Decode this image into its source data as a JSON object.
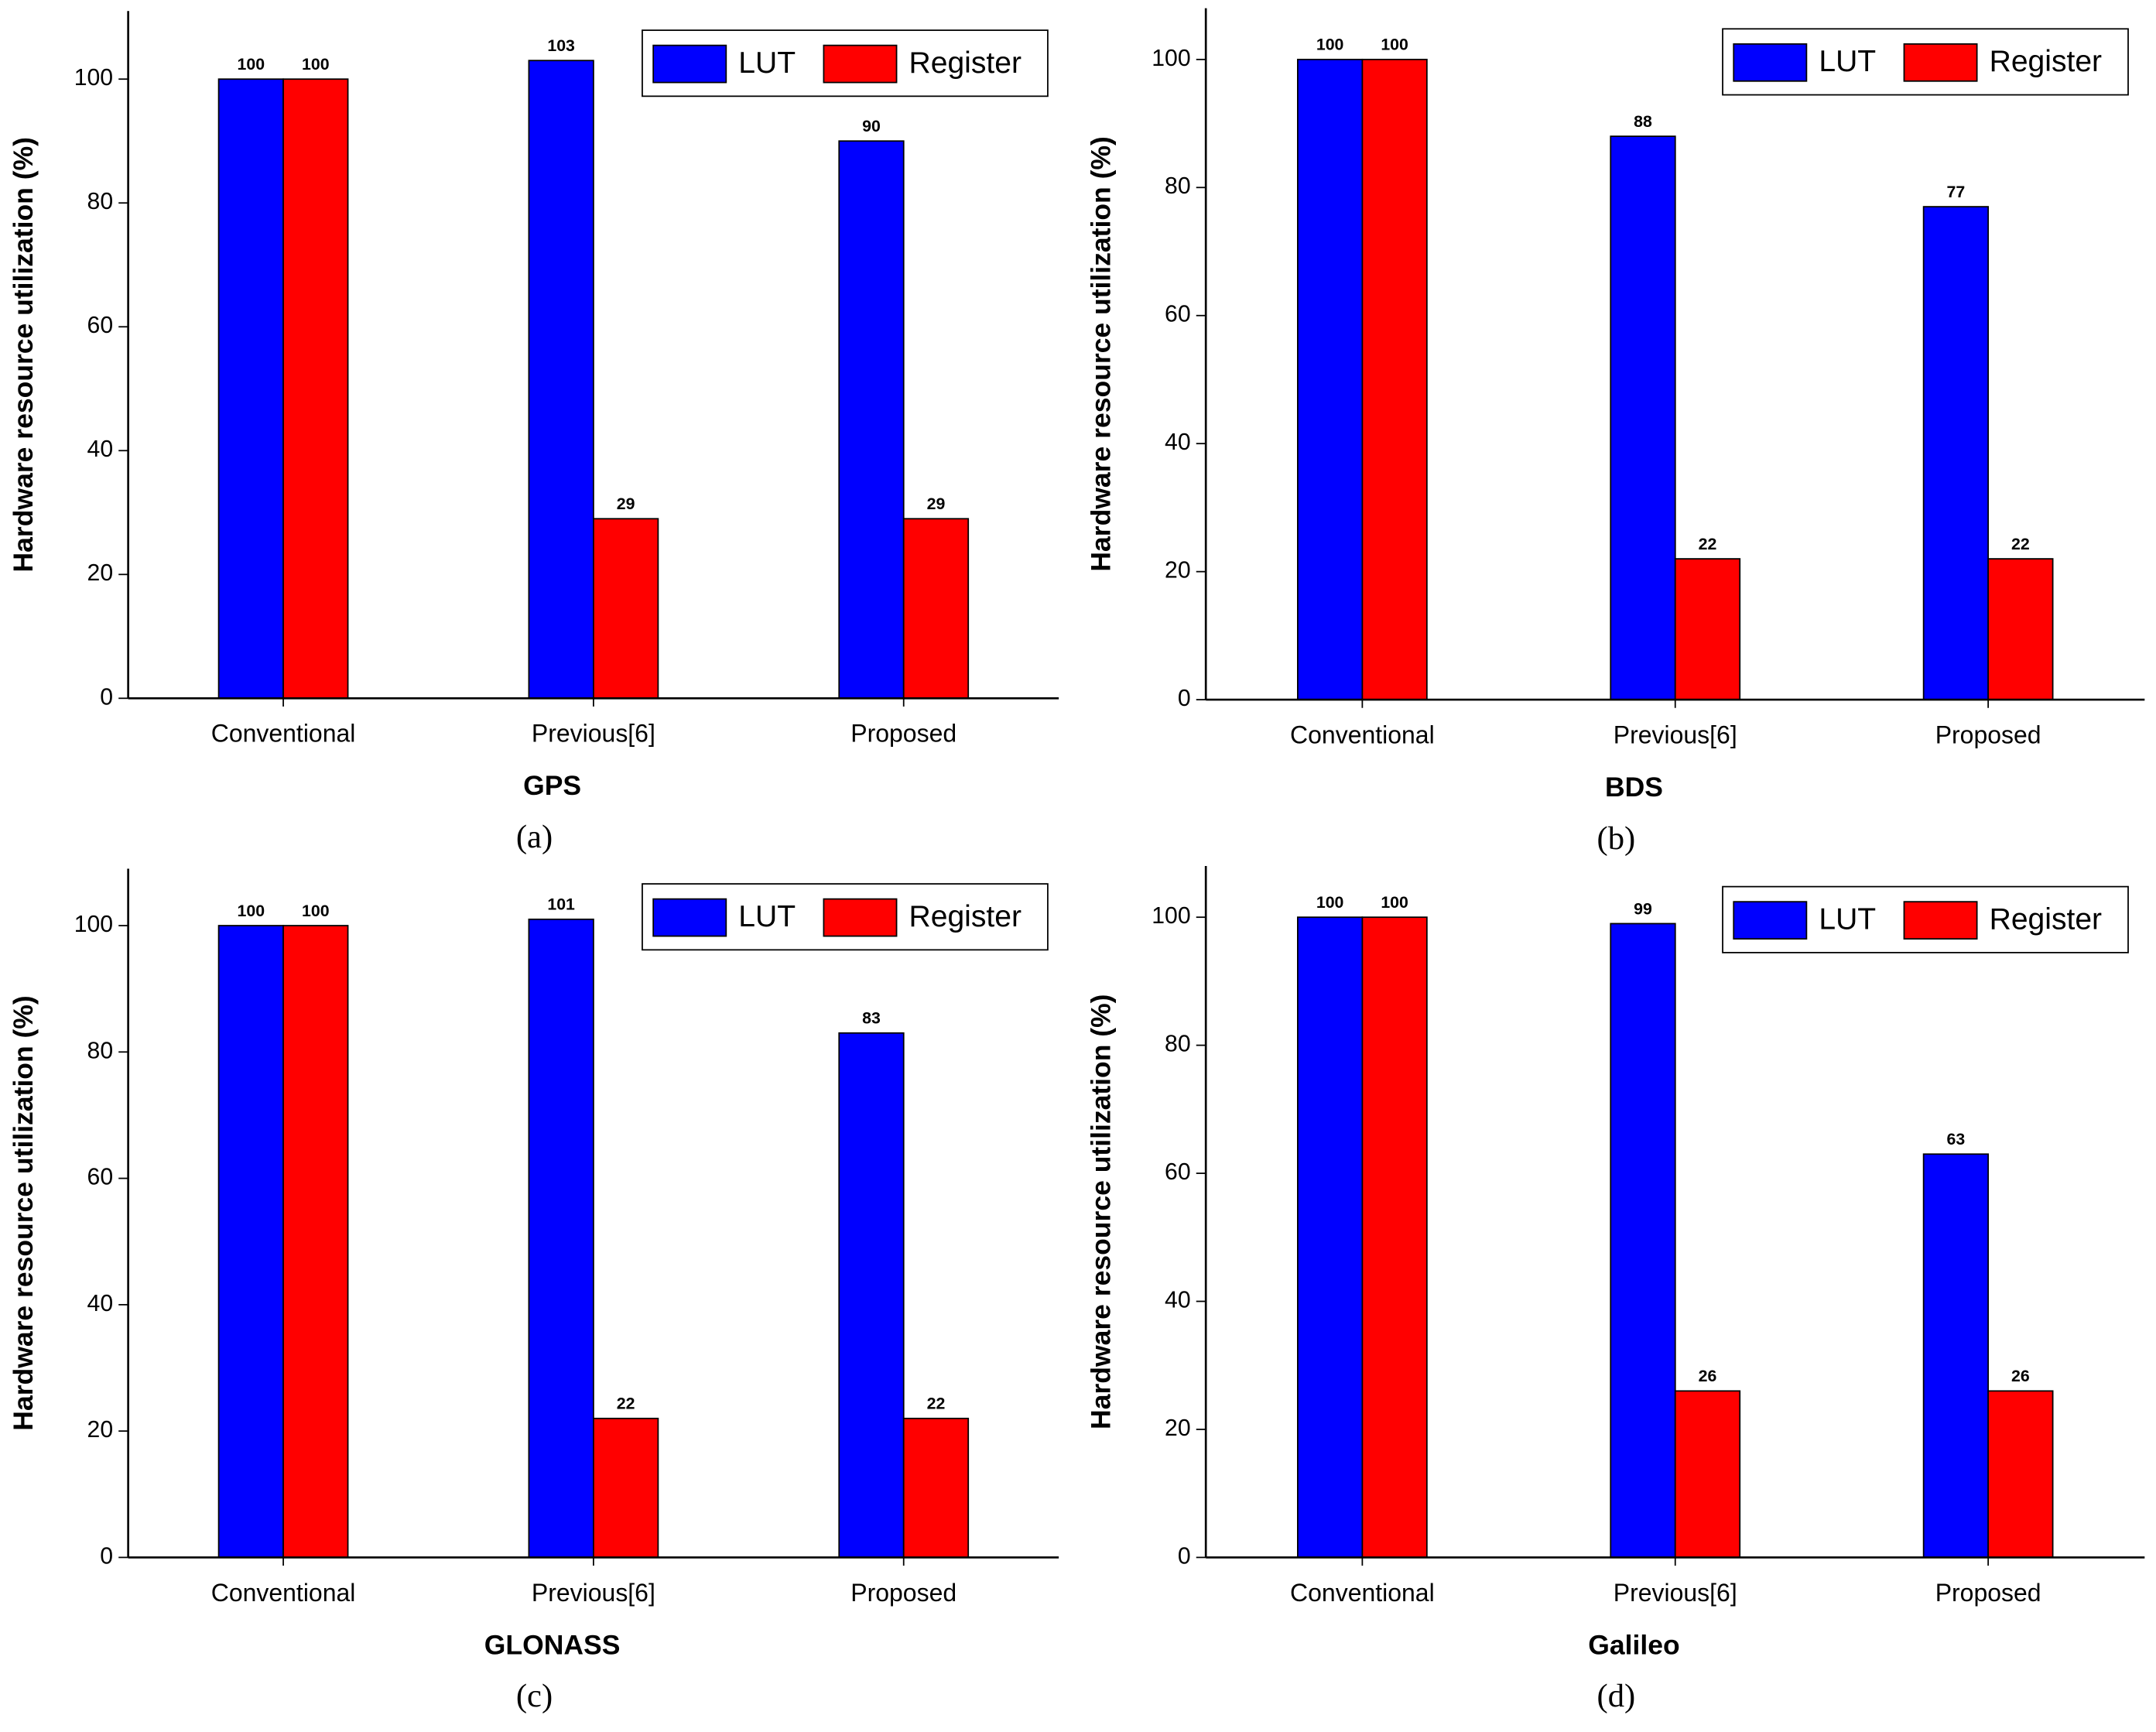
{
  "chart_data": [
    {
      "type": "bar",
      "x_label": "GPS",
      "y_label": "Hardware resource utilization (%)",
      "panel_label": "(a)",
      "categories": [
        "Conventional",
        "Previous[6]",
        "Proposed"
      ],
      "series": [
        {
          "name": "LUT",
          "color": "#0000ff",
          "values": [
            100,
            103,
            90
          ]
        },
        {
          "name": "Register",
          "color": "#ff0000",
          "values": [
            100,
            29,
            29
          ]
        }
      ],
      "ylim": [
        0,
        111
      ],
      "yticks": [
        0,
        20,
        40,
        60,
        80,
        100
      ],
      "legend": "upper right"
    },
    {
      "type": "bar",
      "x_label": "BDS",
      "y_label": "Hardware resource utilization (%)",
      "panel_label": "(b)",
      "categories": [
        "Conventional",
        "Previous[6]",
        "Proposed"
      ],
      "series": [
        {
          "name": "LUT",
          "color": "#0000ff",
          "values": [
            100,
            88,
            77
          ]
        },
        {
          "name": "Register",
          "color": "#ff0000",
          "values": [
            100,
            22,
            22
          ]
        }
      ],
      "ylim": [
        0,
        108
      ],
      "yticks": [
        0,
        20,
        40,
        60,
        80,
        100
      ],
      "legend": "upper right"
    },
    {
      "type": "bar",
      "x_label": "GLONASS",
      "y_label": "Hardware resource utilization (%)",
      "panel_label": "(c)",
      "categories": [
        "Conventional",
        "Previous[6]",
        "Proposed"
      ],
      "series": [
        {
          "name": "LUT",
          "color": "#0000ff",
          "values": [
            100,
            101,
            83
          ]
        },
        {
          "name": "Register",
          "color": "#ff0000",
          "values": [
            100,
            22,
            22
          ]
        }
      ],
      "ylim": [
        0,
        109
      ],
      "yticks": [
        0,
        20,
        40,
        60,
        80,
        100
      ],
      "legend": "upper right"
    },
    {
      "type": "bar",
      "x_label": "Galileo",
      "y_label": "Hardware resource utilization (%)",
      "panel_label": "(d)",
      "categories": [
        "Conventional",
        "Previous[6]",
        "Proposed"
      ],
      "series": [
        {
          "name": "LUT",
          "color": "#0000ff",
          "values": [
            100,
            99,
            63
          ]
        },
        {
          "name": "Register",
          "color": "#ff0000",
          "values": [
            100,
            26,
            26
          ]
        }
      ],
      "ylim": [
        0,
        108
      ],
      "yticks": [
        0,
        20,
        40,
        60,
        80,
        100
      ],
      "legend": "upper right"
    }
  ]
}
